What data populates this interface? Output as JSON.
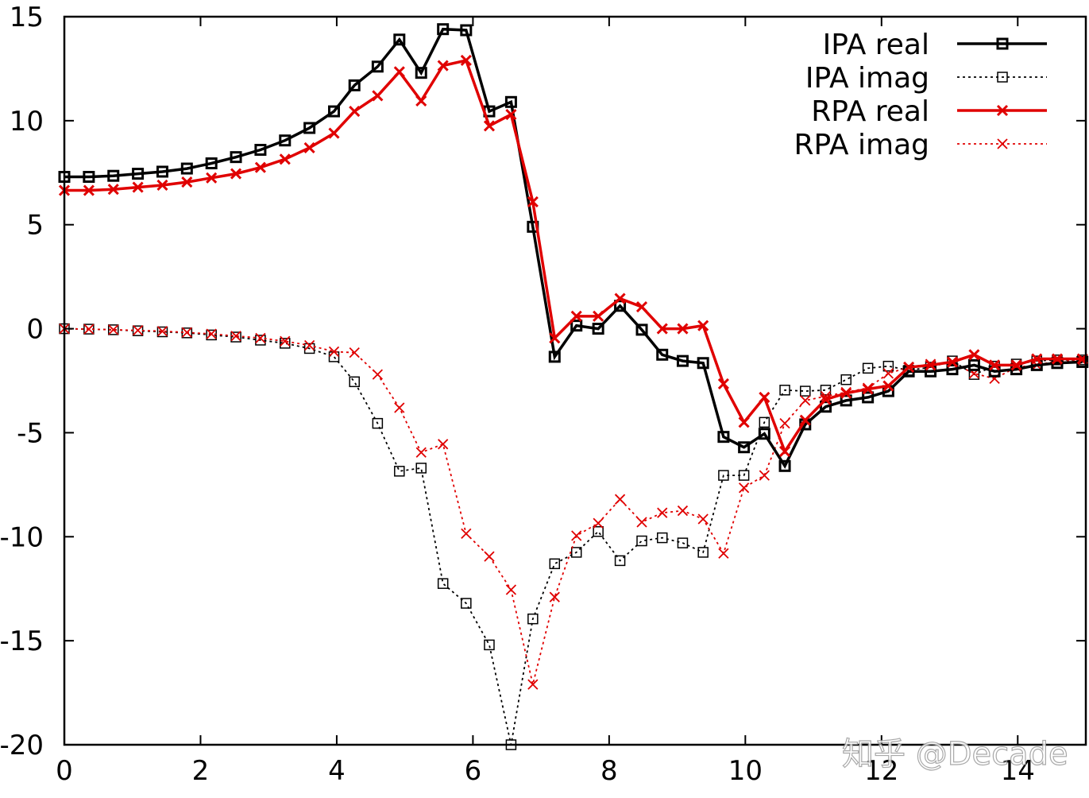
{
  "chart_data": {
    "type": "line",
    "title": "",
    "xlabel": "",
    "ylabel": "",
    "xlim": [
      0,
      15
    ],
    "ylim": [
      -20,
      15
    ],
    "xticks": [
      0,
      2,
      4,
      6,
      8,
      10,
      12,
      14
    ],
    "yticks": [
      15,
      10,
      5,
      0,
      -5,
      -10,
      -15,
      -20
    ],
    "xtick_labels": [
      "0",
      "2",
      "4",
      "6",
      "8",
      "10",
      "12",
      "14"
    ],
    "ytick_labels": [
      "15",
      "10",
      "5",
      "0",
      "-5",
      "-10",
      "-15",
      "-20"
    ],
    "grid": false,
    "legend_position": "top-right",
    "x": [
      0,
      0.36,
      0.72,
      1.08,
      1.44,
      1.8,
      2.16,
      2.52,
      2.88,
      3.24,
      3.6,
      3.96,
      4.26,
      4.6,
      4.92,
      5.24,
      5.56,
      5.9,
      6.24,
      6.56,
      6.88,
      7.2,
      7.52,
      7.84,
      8.16,
      8.48,
      8.78,
      9.08,
      9.38,
      9.68,
      9.98,
      10.28,
      10.58,
      10.88,
      11.18,
      11.48,
      11.8,
      12.1,
      12.4,
      12.72,
      13.04,
      13.36,
      13.66,
      13.98,
      14.28,
      14.58,
      14.95
    ],
    "series": [
      {
        "name": "IPA real",
        "color": "#000000",
        "style": "solid",
        "marker": "square",
        "values": [
          7.3,
          7.3,
          7.35,
          7.45,
          7.55,
          7.7,
          7.95,
          8.25,
          8.6,
          9.05,
          9.65,
          10.45,
          11.7,
          12.6,
          13.9,
          12.3,
          14.4,
          14.35,
          10.45,
          10.9,
          4.9,
          -1.35,
          0.15,
          0.0,
          1.1,
          -0.05,
          -1.25,
          -1.55,
          -1.65,
          -5.2,
          -5.7,
          -5.05,
          -6.6,
          -4.6,
          -3.75,
          -3.45,
          -3.3,
          -3.0,
          -2.05,
          -2.05,
          -1.95,
          -1.75,
          -2.05,
          -1.95,
          -1.75,
          -1.65,
          -1.6
        ]
      },
      {
        "name": "IPA imag",
        "color": "#000000",
        "style": "dotted",
        "marker": "square-open",
        "values": [
          0.0,
          -0.02,
          -0.05,
          -0.1,
          -0.15,
          -0.2,
          -0.3,
          -0.4,
          -0.55,
          -0.7,
          -0.95,
          -1.35,
          -2.55,
          -4.55,
          -6.85,
          -6.7,
          -12.25,
          -13.2,
          -15.2,
          -20.0,
          -13.95,
          -11.3,
          -10.75,
          -9.75,
          -11.15,
          -10.2,
          -10.05,
          -10.3,
          -10.75,
          -7.05,
          -7.05,
          -4.5,
          -2.95,
          -3.0,
          -2.95,
          -2.45,
          -1.9,
          -1.8,
          -2.0,
          -1.85,
          -1.55,
          -2.2,
          -1.8,
          -1.7,
          -1.55,
          -1.5,
          -1.5
        ]
      },
      {
        "name": "RPA real",
        "color": "#e00000",
        "style": "solid",
        "marker": "x",
        "values": [
          6.65,
          6.65,
          6.7,
          6.8,
          6.9,
          7.05,
          7.25,
          7.45,
          7.75,
          8.15,
          8.7,
          9.4,
          10.45,
          11.2,
          12.35,
          10.95,
          12.65,
          12.9,
          9.75,
          10.3,
          6.1,
          -0.45,
          0.6,
          0.6,
          1.45,
          1.05,
          0.0,
          0.0,
          0.15,
          -2.65,
          -4.5,
          -3.3,
          -5.9,
          -4.4,
          -3.4,
          -3.1,
          -2.9,
          -2.75,
          -1.85,
          -1.75,
          -1.6,
          -1.25,
          -1.75,
          -1.75,
          -1.45,
          -1.45,
          -1.45
        ]
      },
      {
        "name": "RPA imag",
        "color": "#e00000",
        "style": "dotted",
        "marker": "x-thin",
        "values": [
          0.0,
          -0.02,
          -0.05,
          -0.08,
          -0.12,
          -0.18,
          -0.25,
          -0.35,
          -0.45,
          -0.6,
          -0.8,
          -1.1,
          -1.15,
          -2.2,
          -3.8,
          -5.95,
          -5.55,
          -9.85,
          -10.95,
          -12.55,
          -17.1,
          -12.9,
          -9.95,
          -9.35,
          -8.2,
          -9.3,
          -8.85,
          -8.75,
          -9.15,
          -10.8,
          -7.65,
          -7.05,
          -4.55,
          -3.45,
          -3.25,
          -3.05,
          -2.85,
          -2.15,
          -1.85,
          -1.7,
          -1.65,
          -2.15,
          -2.4,
          -1.85,
          -1.75,
          -1.55,
          -1.55
        ]
      }
    ],
    "watermark": "知乎 @Decade"
  }
}
